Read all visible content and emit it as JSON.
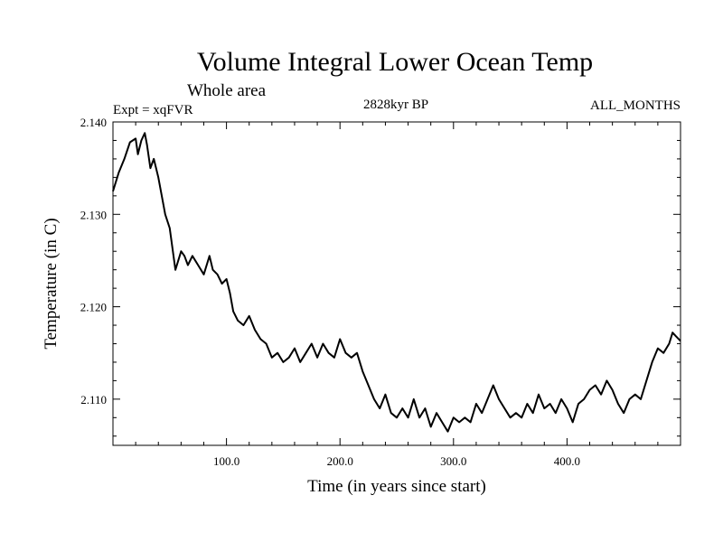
{
  "chart_data": {
    "type": "line",
    "title": "Volume Integral Lower Ocean Temp",
    "subtitle": "Whole area",
    "experiment": "Expt = xqFVR",
    "period": "2828kyr BP",
    "season": "ALL_MONTHS",
    "xlabel": "Time (in years since start)",
    "ylabel": "Temperature (in C)",
    "xlim": [
      0,
      500
    ],
    "ylim": [
      2.105,
      2.14
    ],
    "xticks": [
      100,
      200,
      300,
      400
    ],
    "xtick_labels": [
      "100.0",
      "200.0",
      "300.0",
      "400.0"
    ],
    "yticks": [
      2.11,
      2.12,
      2.13,
      2.14
    ],
    "ytick_labels": [
      "2.110",
      "2.120",
      "2.130",
      "2.140"
    ],
    "grid": false,
    "series": [
      {
        "name": "Temperature",
        "x": [
          0,
          5,
          10,
          15,
          20,
          22,
          25,
          28,
          30,
          33,
          36,
          40,
          43,
          46,
          50,
          55,
          60,
          63,
          66,
          70,
          75,
          80,
          85,
          88,
          92,
          96,
          100,
          103,
          106,
          110,
          115,
          120,
          125,
          130,
          135,
          140,
          145,
          150,
          155,
          160,
          165,
          170,
          175,
          180,
          185,
          190,
          195,
          200,
          205,
          210,
          215,
          220,
          225,
          230,
          235,
          240,
          245,
          250,
          255,
          260,
          265,
          270,
          275,
          280,
          285,
          290,
          295,
          300,
          305,
          310,
          315,
          320,
          325,
          330,
          335,
          340,
          345,
          350,
          355,
          360,
          365,
          370,
          375,
          380,
          385,
          390,
          395,
          400,
          405,
          410,
          415,
          420,
          425,
          430,
          435,
          440,
          445,
          450,
          455,
          460,
          465,
          470,
          475,
          480,
          485,
          490,
          493,
          496,
          500
        ],
        "values": [
          2.1325,
          2.1345,
          2.136,
          2.1378,
          2.1382,
          2.1365,
          2.138,
          2.1388,
          2.1375,
          2.135,
          2.136,
          2.134,
          2.132,
          2.13,
          2.1285,
          2.124,
          2.126,
          2.1255,
          2.1245,
          2.1255,
          2.1245,
          2.1235,
          2.1255,
          2.124,
          2.1235,
          2.1225,
          2.123,
          2.1215,
          2.1195,
          2.1185,
          2.118,
          2.119,
          2.1175,
          2.1165,
          2.116,
          2.1145,
          2.115,
          2.114,
          2.1145,
          2.1155,
          2.114,
          2.115,
          2.116,
          2.1145,
          2.116,
          2.115,
          2.1145,
          2.1165,
          2.115,
          2.1145,
          2.115,
          2.113,
          2.1115,
          2.11,
          2.109,
          2.1105,
          2.1085,
          2.108,
          2.109,
          2.108,
          2.11,
          2.108,
          2.109,
          2.107,
          2.1085,
          2.1075,
          2.1065,
          2.108,
          2.1075,
          2.108,
          2.1075,
          2.1095,
          2.1085,
          2.11,
          2.1115,
          2.11,
          2.109,
          2.108,
          2.1085,
          2.108,
          2.1095,
          2.1085,
          2.1105,
          2.109,
          2.1095,
          2.1085,
          2.11,
          2.109,
          2.1075,
          2.1095,
          2.11,
          2.111,
          2.1115,
          2.1105,
          2.112,
          2.111,
          2.1095,
          2.1085,
          2.11,
          2.1105,
          2.11,
          2.112,
          2.114,
          2.1155,
          2.115,
          2.116,
          2.1172,
          2.1168,
          2.1163
        ]
      }
    ]
  }
}
